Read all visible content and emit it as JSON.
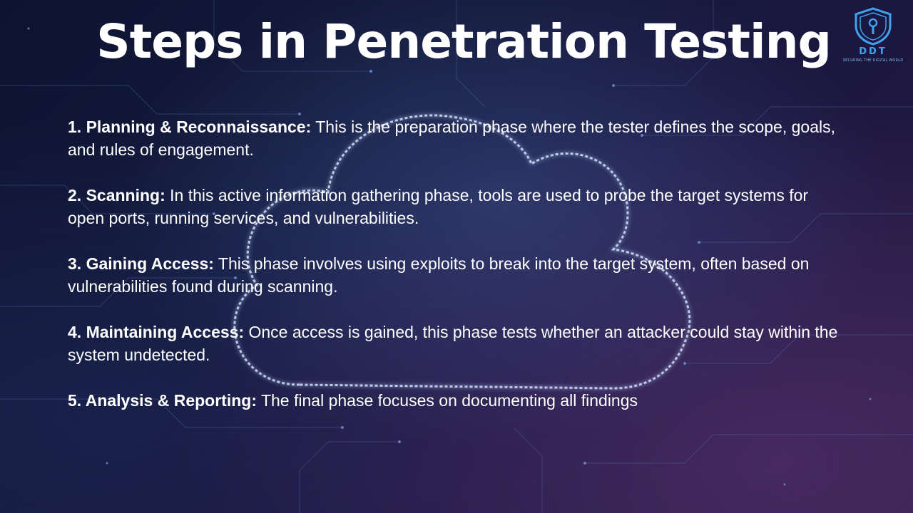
{
  "slide": {
    "title": "Steps in Penetration Testing"
  },
  "logo": {
    "name": "DDT",
    "tagline": "SECURING THE DIGITAL WORLD",
    "icon": "shield-keyhole-icon",
    "color": "#3fa3f0"
  },
  "background": {
    "icon": "cloud-outline-icon",
    "colors": [
      "#0d1330",
      "#2a1c45",
      "#7fa0d8"
    ]
  },
  "steps": [
    {
      "label": "1. Planning & Reconnaissance:",
      "text": " This is the preparation phase where the tester defines the scope, goals, and rules of engagement."
    },
    {
      "label": "2. Scanning:",
      "text": " In this active information gathering phase, tools are used to probe the target systems for open ports, running services, and vulnerabilities."
    },
    {
      "label": "3. Gaining Access:",
      "text": " This phase involves using exploits to break into the target system, often based on vulnerabilities found during scanning."
    },
    {
      "label": "4. Maintaining Access:",
      "text": " Once access is gained, this phase tests whether an attacker could stay within the system undetected."
    },
    {
      "label": "5. Analysis & Reporting:",
      "text": " The final phase focuses on documenting all findings"
    }
  ]
}
